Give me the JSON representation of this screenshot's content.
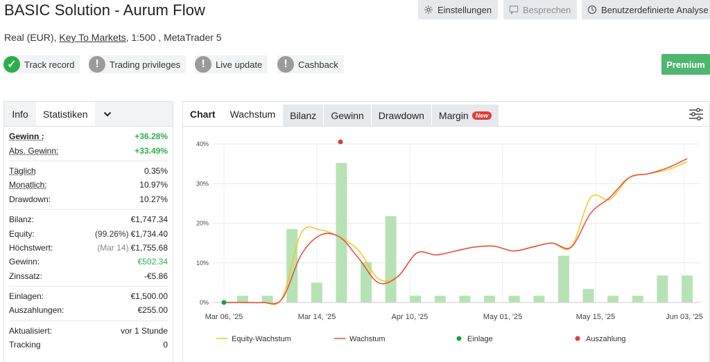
{
  "header": {
    "title": "BASIC Solution - Aurum Flow",
    "account_type": "Real (EUR), ",
    "broker": "Key To Markets",
    "leverage_platform": ", 1:500 , MetaTrader 5",
    "buttons": {
      "settings": "Einstellungen",
      "discuss": "Besprechen",
      "custom_analysis": "Benutzerdefinierte Analyse"
    },
    "badges": [
      {
        "label": "Track record",
        "status": "ok"
      },
      {
        "label": "Trading privileges",
        "status": "warn"
      },
      {
        "label": "Live update",
        "status": "warn"
      },
      {
        "label": "Cashback",
        "status": "warn"
      }
    ],
    "premium": "Premium"
  },
  "left": {
    "tabs": {
      "info": "Info",
      "stats": "Statistiken"
    },
    "rows": {
      "gain_k": "Gewinn :",
      "gain_v": "+36.28%",
      "absgain_k": "Abs. Gewinn:",
      "absgain_v": "+33.49%",
      "daily_k": "Täglich",
      "daily_v": "0.35%",
      "monthly_k": "Monatlich:",
      "monthly_v": "10.97%",
      "dd_k": "Drawdown:",
      "dd_v": "10.27%",
      "balance_k": "Bilanz:",
      "balance_v": "€1,747.34",
      "equity_k": "Equity:",
      "equity_pre": "(99.26%)",
      "equity_v": "€1,734.40",
      "high_k": "Höchstwert:",
      "high_pre": "(Mar 14)",
      "high_v": "€1,755.68",
      "profit_k": "Gewinn:",
      "profit_v": "€502.34",
      "interest_k": "Zinssatz:",
      "interest_v": "-€5.86",
      "deposits_k": "Einlagen:",
      "deposits_v": "€1,500.00",
      "withdrawals_k": "Auszahlungen:",
      "withdrawals_v": "€255.00",
      "updated_k": "Aktualisiert:",
      "updated_v": "vor 1 Stunde",
      "tracking_k": "Tracking",
      "tracking_v": "0"
    }
  },
  "right": {
    "tabs": {
      "chart": "Chart",
      "growth": "Wachstum",
      "balance": "Bilanz",
      "profit": "Gewinn",
      "drawdown": "Drawdown",
      "margin": "Margin",
      "new": "New"
    }
  },
  "colors": {
    "equity_line": "#f5c518",
    "growth_line": "#e8473a",
    "bars": "#b7e2b5",
    "deposit": "#1aa33a",
    "withdrawal": "#e53935"
  },
  "chart_data": {
    "type": "bar",
    "ylim": [
      0,
      40
    ],
    "yticks": [
      "0%",
      "10%",
      "20%",
      "30%",
      "40%"
    ],
    "xticks": [
      "Mar 06, '25",
      "Mar 14, '25",
      "Apr 10, '25",
      "May 01, '25",
      "May 15, '25",
      "Jun 03, '25"
    ],
    "bars": [
      1.7,
      1.7,
      18.5,
      5,
      35.2,
      10.2,
      21.8,
      1.7,
      1.7,
      1.7,
      1.7,
      1.7,
      1.7,
      11.8,
      3.4,
      1.7,
      1.7,
      6.8,
      6.8
    ],
    "series": [
      {
        "name": "Equity-Wachstum",
        "values": [
          0,
          0,
          0,
          1.0,
          17.5,
          18.3,
          16.5,
          13,
          6,
          6.5,
          12.5,
          12.0,
          13.0,
          14.0,
          14.2,
          13.0,
          14.0,
          15.0,
          14.0,
          26.5,
          26.0,
          31.5,
          32.5,
          33.5,
          35.5
        ]
      },
      {
        "name": "Wachstum",
        "values": [
          0,
          0,
          0,
          0.8,
          12,
          17,
          16.5,
          11,
          5,
          6.5,
          12.5,
          12.0,
          13.0,
          14.0,
          14.2,
          13.0,
          14.0,
          15.0,
          14.0,
          22.5,
          26.5,
          31.5,
          32.5,
          34.0,
          36.3
        ]
      }
    ],
    "legend": [
      "Equity-Wachstum",
      "Wachstum",
      "Einlage",
      "Auszahlung"
    ]
  }
}
